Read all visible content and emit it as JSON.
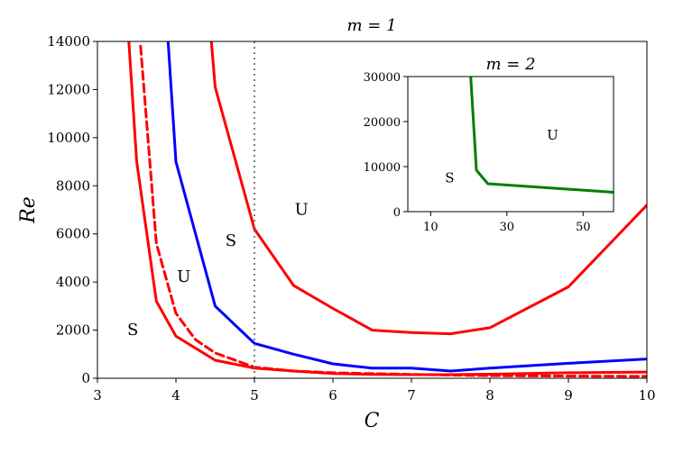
{
  "chart_data": {
    "main": {
      "type": "line",
      "title": "m = 1",
      "xlabel": "C",
      "ylabel": "Re",
      "xlim": [
        3,
        10
      ],
      "ylim": [
        0,
        14000
      ],
      "xticks": [
        "3",
        "4",
        "5",
        "6",
        "7",
        "8",
        "9",
        "10"
      ],
      "yticks": [
        "0",
        "2000",
        "4000",
        "6000",
        "8000",
        "10000",
        "12000",
        "14000"
      ],
      "grid": false,
      "vertical_reference_line": {
        "x": 5,
        "style": "dotted",
        "color": "#808080"
      },
      "series": [
        {
          "color": "#ff0000",
          "style": "solid",
          "x": [
            3.4,
            3.5,
            3.75,
            4.0,
            4.5,
            5.0,
            5.5,
            6.0,
            6.5,
            7.0,
            7.5,
            8.0,
            9.0,
            10.0
          ],
          "y": [
            14000,
            9000,
            3200,
            1750,
            750,
            420,
            300,
            200,
            160,
            150,
            150,
            170,
            230,
            260
          ]
        },
        {
          "color": "#ff0000",
          "style": "dashed",
          "x": [
            3.55,
            3.75,
            4.0,
            4.25,
            4.5,
            5.0,
            5.5,
            6.0,
            6.5,
            7.0,
            7.5,
            8.0,
            9.0,
            10.0
          ],
          "y": [
            13800,
            5600,
            2700,
            1600,
            1050,
            460,
            300,
            230,
            190,
            160,
            130,
            110,
            90,
            80
          ]
        },
        {
          "color": "#0000ff",
          "style": "solid",
          "x": [
            3.9,
            4.0,
            4.5,
            5.0,
            5.5,
            6.0,
            6.5,
            7.0,
            7.5,
            8.0,
            9.0,
            10.0
          ],
          "y": [
            14000,
            9000,
            3000,
            1450,
            1000,
            600,
            420,
            420,
            300,
            420,
            620,
            800
          ]
        },
        {
          "color": "#ff0000",
          "style": "solid",
          "x": [
            4.45,
            4.5,
            5.0,
            5.5,
            6.0,
            6.5,
            7.0,
            7.5,
            8.0,
            9.0,
            10.0
          ],
          "y": [
            14000,
            12100,
            6200,
            3850,
            2900,
            2000,
            1900,
            1850,
            2100,
            3800,
            7200
          ]
        }
      ],
      "annotations": [
        {
          "text": "S",
          "x": 3.45,
          "y": 1800
        },
        {
          "text": "U",
          "x": 4.1,
          "y": 4000
        },
        {
          "text": "S",
          "x": 4.7,
          "y": 5500
        },
        {
          "text": "U",
          "x": 5.6,
          "y": 6800
        }
      ]
    },
    "inset": {
      "type": "line",
      "title": "m = 2",
      "xlim": [
        4,
        58
      ],
      "ylim": [
        0,
        30000
      ],
      "xticks": [
        "10",
        "30",
        "50"
      ],
      "yticks": [
        "0",
        "10000",
        "20000",
        "30000"
      ],
      "series": [
        {
          "color": "#008000",
          "style": "solid",
          "x": [
            20.5,
            22,
            25,
            58
          ],
          "y": [
            30000,
            9200,
            6200,
            4300
          ]
        }
      ],
      "annotations": [
        {
          "text": "S",
          "x": 15,
          "y": 6500
        },
        {
          "text": "U",
          "x": 42,
          "y": 16000
        }
      ]
    }
  }
}
